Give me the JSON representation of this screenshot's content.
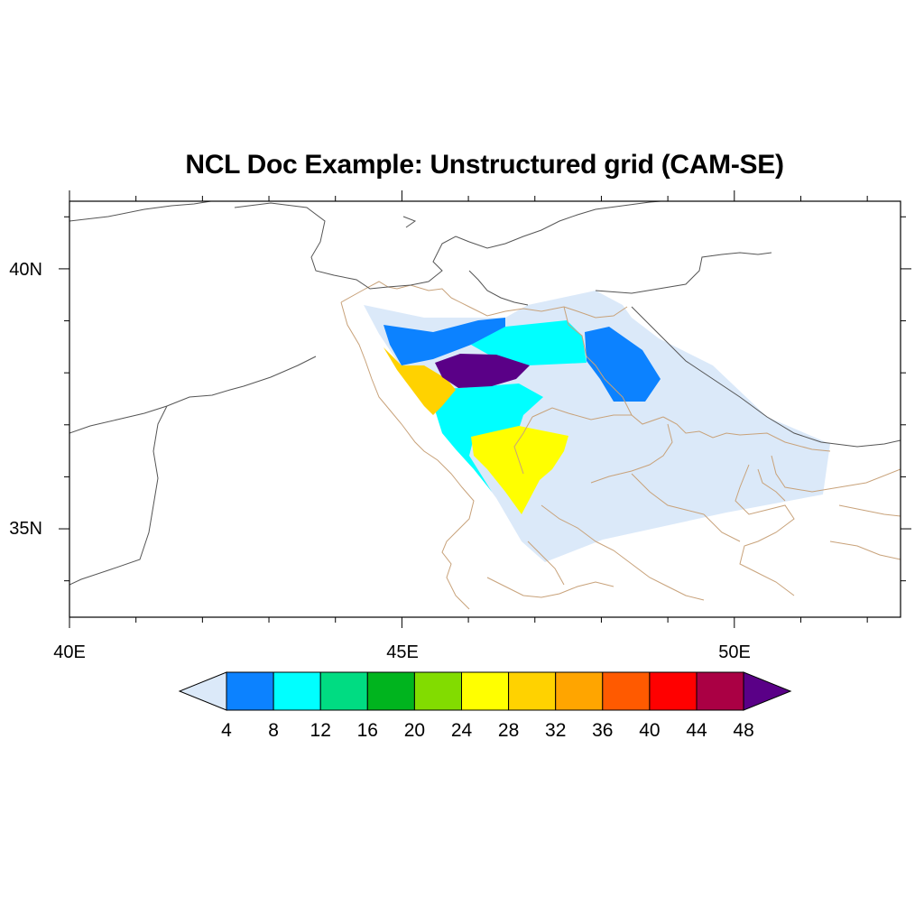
{
  "title": "NCL Doc Example: Unstructured grid (CAM-SE)",
  "map": {
    "lon_range": [
      40,
      52.5
    ],
    "lat_range": [
      33.3,
      41.3
    ],
    "x_ticks": [
      {
        "value": 40,
        "label": "40E"
      },
      {
        "value": 45,
        "label": "45E"
      },
      {
        "value": 50,
        "label": "50E"
      }
    ],
    "y_ticks": [
      {
        "value": 40,
        "label": "40N"
      },
      {
        "value": 35,
        "label": "35N"
      }
    ],
    "coastline_color": "#555555",
    "border_color": "#c8a27a"
  },
  "colorbar": {
    "labels": [
      "4",
      "8",
      "12",
      "16",
      "20",
      "24",
      "28",
      "32",
      "36",
      "40",
      "44",
      "48"
    ],
    "colors": [
      "#dbe9f9",
      "#0c82ff",
      "#00ffff",
      "#00dc82",
      "#00b41e",
      "#82dc00",
      "#ffff00",
      "#ffd200",
      "#ffa500",
      "#ff5a00",
      "#ff0000",
      "#aa0044",
      "#5a0087"
    ]
  }
}
